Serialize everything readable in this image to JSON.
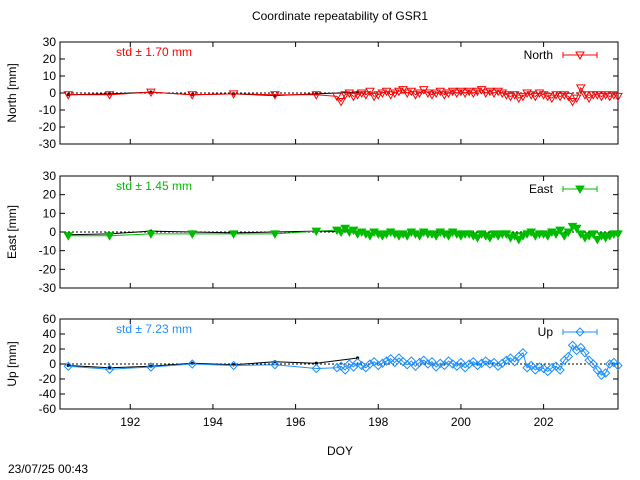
{
  "chart_data": {
    "type": "line",
    "title": "Coordinate repeatability of GSR1",
    "xlabel": "DOY",
    "xlim": [
      190.3,
      203.8
    ],
    "x_ticks": [
      192,
      194,
      196,
      198,
      200,
      202
    ],
    "grid": false,
    "timestamp": "23/07/25 00:43",
    "panels": [
      {
        "key": "north",
        "ylabel": "North [mm]",
        "ylim": [
          -30,
          30
        ],
        "y_ticks": [
          -30,
          -20,
          -10,
          0,
          10,
          20,
          30
        ],
        "std_label": "std ± 1.70 mm",
        "legend": "North",
        "color": "#ff0000",
        "marker": "triangle-down-open",
        "daily": {
          "x": [
            190.5,
            191.5,
            192.5,
            193.5,
            194.5,
            195.5,
            196.5,
            197.5
          ],
          "y": [
            -1,
            -0.5,
            0.5,
            -1,
            -0.5,
            -1.5,
            -0.5,
            0.5
          ]
        },
        "series": {
          "x": [
            190.5,
            191.5,
            192.5,
            193.5,
            194.5,
            195.5,
            196.5,
            197.0,
            197.1,
            197.2,
            197.3,
            197.4,
            197.5,
            197.6,
            197.7,
            197.8,
            197.9,
            198.0,
            198.1,
            198.2,
            198.3,
            198.4,
            198.5,
            198.6,
            198.7,
            198.8,
            198.9,
            199.0,
            199.1,
            199.2,
            199.3,
            199.4,
            199.5,
            199.6,
            199.7,
            199.8,
            199.9,
            200.0,
            200.1,
            200.2,
            200.3,
            200.4,
            200.5,
            200.6,
            200.7,
            200.8,
            200.9,
            201.0,
            201.1,
            201.2,
            201.3,
            201.4,
            201.5,
            201.6,
            201.7,
            201.8,
            201.9,
            202.0,
            202.1,
            202.2,
            202.3,
            202.4,
            202.5,
            202.6,
            202.7,
            202.8,
            202.9,
            203.0,
            203.1,
            203.2,
            203.3,
            203.4,
            203.5,
            203.6,
            203.7,
            203.8
          ],
          "y": [
            -1,
            -1,
            0.5,
            -1,
            -0.5,
            -1,
            -1,
            -2,
            -5,
            -1,
            0,
            -2,
            -1,
            0,
            -1,
            1,
            -2,
            -1,
            0,
            1,
            -1,
            0,
            1,
            2,
            0,
            1,
            -1,
            0,
            2,
            0,
            -1,
            0,
            1,
            -1,
            0,
            1,
            0,
            1,
            0,
            1,
            0,
            1,
            2,
            0,
            1,
            0,
            1,
            0,
            -1,
            -2,
            -1,
            -3,
            -2,
            0,
            -1,
            -2,
            0,
            -1,
            -2,
            -3,
            -1,
            -2,
            -1,
            -2,
            -5,
            -3,
            3,
            -1,
            -3,
            -1,
            -1,
            -2,
            -1,
            -2,
            -1,
            -2
          ]
        }
      },
      {
        "key": "east",
        "ylabel": "East [mm]",
        "ylim": [
          -30,
          30
        ],
        "y_ticks": [
          -30,
          -20,
          -10,
          0,
          10,
          20,
          30
        ],
        "std_label": "std ± 1.45 mm",
        "legend": "East",
        "color": "#00bb00",
        "marker": "triangle-down-filled",
        "daily": {
          "x": [
            190.5,
            191.5,
            192.5,
            193.5,
            194.5,
            195.5,
            196.5,
            197.5
          ],
          "y": [
            -1.5,
            -1,
            0.5,
            0,
            -0.5,
            0,
            0.5,
            0
          ]
        },
        "series": {
          "x": [
            190.5,
            191.5,
            192.5,
            193.5,
            194.5,
            195.5,
            196.5,
            197.0,
            197.1,
            197.2,
            197.3,
            197.4,
            197.5,
            197.6,
            197.7,
            197.8,
            197.9,
            198.0,
            198.1,
            198.2,
            198.3,
            198.4,
            198.5,
            198.6,
            198.7,
            198.8,
            198.9,
            199.0,
            199.1,
            199.2,
            199.3,
            199.4,
            199.5,
            199.6,
            199.7,
            199.8,
            199.9,
            200.0,
            200.1,
            200.2,
            200.3,
            200.4,
            200.5,
            200.6,
            200.7,
            200.8,
            200.9,
            201.0,
            201.1,
            201.2,
            201.3,
            201.4,
            201.5,
            201.6,
            201.7,
            201.8,
            201.9,
            202.0,
            202.1,
            202.2,
            202.3,
            202.4,
            202.5,
            202.6,
            202.7,
            202.8,
            202.9,
            203.0,
            203.1,
            203.2,
            203.3,
            203.4,
            203.5,
            203.6,
            203.7,
            203.8
          ],
          "y": [
            -2,
            -2,
            -1,
            -1,
            -1,
            -1,
            0.5,
            1,
            0,
            2,
            0,
            1,
            -1,
            0,
            -1,
            -2,
            0,
            -1,
            -2,
            -1,
            0,
            -1,
            -2,
            -1,
            -2,
            0,
            -1,
            -2,
            0,
            -1,
            -1,
            -2,
            0,
            -1,
            -2,
            0,
            -1,
            -2,
            -1,
            -1,
            -2,
            -3,
            -1,
            -2,
            -3,
            -1,
            -2,
            -1,
            -1,
            -3,
            -2,
            -4,
            -2,
            -1,
            0,
            -2,
            -1,
            -1,
            -2,
            0,
            -1,
            1,
            -2,
            0,
            3,
            2,
            -1,
            -3,
            -2,
            -1,
            -4,
            -2,
            -3,
            -2,
            -1,
            -1
          ]
        }
      },
      {
        "key": "up",
        "ylabel": "Up [mm]",
        "ylim": [
          -60,
          60
        ],
        "y_ticks": [
          -60,
          -40,
          -20,
          0,
          20,
          40,
          60
        ],
        "std_label": "std ± 7.23 mm",
        "legend": "Up",
        "color": "#1e90ff",
        "marker": "diamond-open",
        "daily": {
          "x": [
            190.5,
            191.5,
            192.5,
            193.5,
            194.5,
            195.5,
            196.5,
            197.5
          ],
          "y": [
            -2,
            -5,
            -3,
            1,
            -1,
            3,
            1,
            8
          ]
        },
        "series": {
          "x": [
            190.5,
            191.5,
            192.5,
            193.5,
            194.5,
            195.5,
            196.5,
            197.0,
            197.1,
            197.2,
            197.3,
            197.4,
            197.5,
            197.6,
            197.7,
            197.8,
            197.9,
            198.0,
            198.1,
            198.2,
            198.3,
            198.4,
            198.5,
            198.6,
            198.7,
            198.8,
            198.9,
            199.0,
            199.1,
            199.2,
            199.3,
            199.4,
            199.5,
            199.6,
            199.7,
            199.8,
            199.9,
            200.0,
            200.1,
            200.2,
            200.3,
            200.4,
            200.5,
            200.6,
            200.7,
            200.8,
            200.9,
            201.0,
            201.1,
            201.2,
            201.3,
            201.4,
            201.5,
            201.6,
            201.7,
            201.8,
            201.9,
            202.0,
            202.1,
            202.2,
            202.3,
            202.4,
            202.5,
            202.6,
            202.7,
            202.8,
            202.9,
            203.0,
            203.1,
            203.2,
            203.3,
            203.4,
            203.5,
            203.6,
            203.7,
            203.8
          ],
          "y": [
            -3,
            -7,
            -4,
            0,
            -2,
            -1,
            -6,
            -5,
            -3,
            -8,
            0,
            -4,
            2,
            -2,
            -5,
            0,
            3,
            -2,
            1,
            4,
            7,
            2,
            8,
            3,
            -1,
            4,
            -3,
            2,
            5,
            0,
            3,
            -4,
            1,
            -2,
            4,
            0,
            -3,
            2,
            -5,
            0,
            3,
            -2,
            1,
            4,
            0,
            2,
            -3,
            1,
            5,
            8,
            3,
            10,
            15,
            -5,
            -2,
            -8,
            -4,
            -6,
            -10,
            -5,
            -3,
            -8,
            5,
            10,
            25,
            18,
            22,
            15,
            5,
            0,
            -8,
            -15,
            -12,
            0,
            2,
            -2
          ]
        }
      }
    ]
  }
}
